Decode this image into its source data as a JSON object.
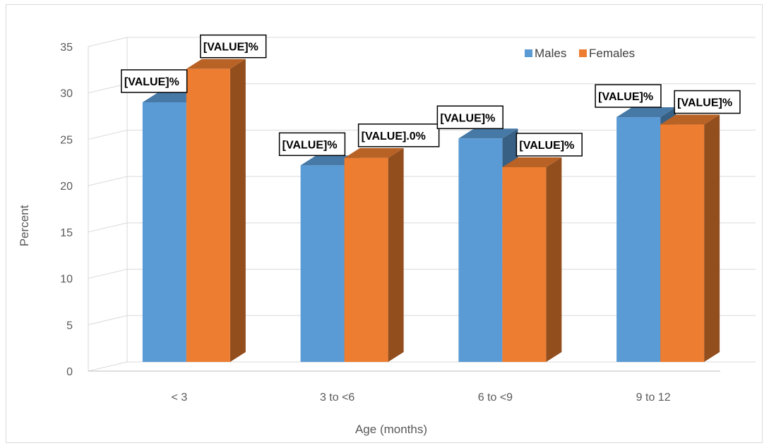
{
  "chart_data": {
    "type": "bar",
    "categories": [
      "< 3",
      "3  to <6",
      "6  to <9",
      "9 to 12"
    ],
    "series": [
      {
        "name": "Males",
        "values": [
          28.0,
          21.2,
          24.1,
          26.4
        ],
        "color": "#5b9bd5",
        "labels": [
          "[VALUE]%",
          "[VALUE]%",
          "[VALUE]%",
          "[VALUE]%"
        ]
      },
      {
        "name": "Females",
        "values": [
          31.6,
          22.0,
          21.0,
          25.6
        ],
        "color": "#ed7d31",
        "labels": [
          "[VALUE]%",
          "[VALUE].0%",
          "[VALUE]%",
          "[VALUE]%"
        ]
      }
    ],
    "xlabel": "Age (months)",
    "ylabel": "Percent",
    "ylim": [
      0,
      35
    ],
    "yticks": [
      0,
      5,
      10,
      15,
      20,
      25,
      30,
      35
    ],
    "grid": true,
    "legend": "top-right",
    "three_d": true
  }
}
